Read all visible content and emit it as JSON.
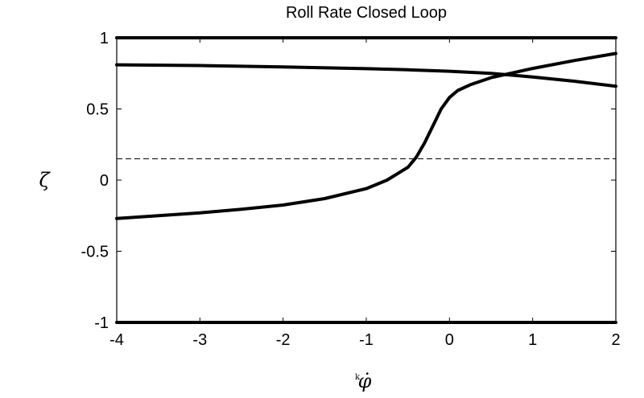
{
  "chart_data": {
    "type": "line",
    "title": "Roll Rate Closed Loop",
    "xlabel": "φ̇",
    "xlabel_subscript": "k",
    "ylabel": "ζ",
    "xlim": [
      -4,
      2
    ],
    "ylim": [
      -1,
      1
    ],
    "xticks": [
      -4,
      -3,
      -2,
      -1,
      0,
      1,
      2
    ],
    "yticks": [
      -1,
      -0.5,
      0,
      0.5,
      1
    ],
    "xtick_labels": [
      "-4",
      "-3",
      "-2",
      "-1",
      "0",
      "1",
      "2"
    ],
    "ytick_labels": [
      "-1",
      "-0.5",
      "0",
      "0.5",
      "1"
    ],
    "grid": false,
    "reference_line": {
      "y": 0.15,
      "style": "dashed"
    },
    "series": [
      {
        "x": [
          -4,
          2
        ],
        "y": [
          1,
          1
        ]
      },
      {
        "x": [
          -4,
          2
        ],
        "y": [
          -1,
          -1
        ]
      },
      {
        "x": [
          -4,
          -3,
          -2,
          -1,
          -0.5,
          0,
          0.5,
          1,
          1.5,
          2
        ],
        "y": [
          0.81,
          0.805,
          0.795,
          0.783,
          0.775,
          0.765,
          0.75,
          0.725,
          0.695,
          0.66
        ]
      },
      {
        "x": [
          -4,
          -3.5,
          -3,
          -2.5,
          -2,
          -1.5,
          -1,
          -0.75,
          -0.5,
          -0.4,
          -0.3,
          -0.2,
          -0.1,
          0,
          0.1,
          0.25,
          0.5,
          1,
          1.5,
          2
        ],
        "y": [
          -0.27,
          -0.25,
          -0.23,
          -0.205,
          -0.175,
          -0.13,
          -0.06,
          0.0,
          0.09,
          0.16,
          0.26,
          0.38,
          0.5,
          0.58,
          0.63,
          0.67,
          0.72,
          0.785,
          0.84,
          0.89
        ]
      }
    ]
  }
}
